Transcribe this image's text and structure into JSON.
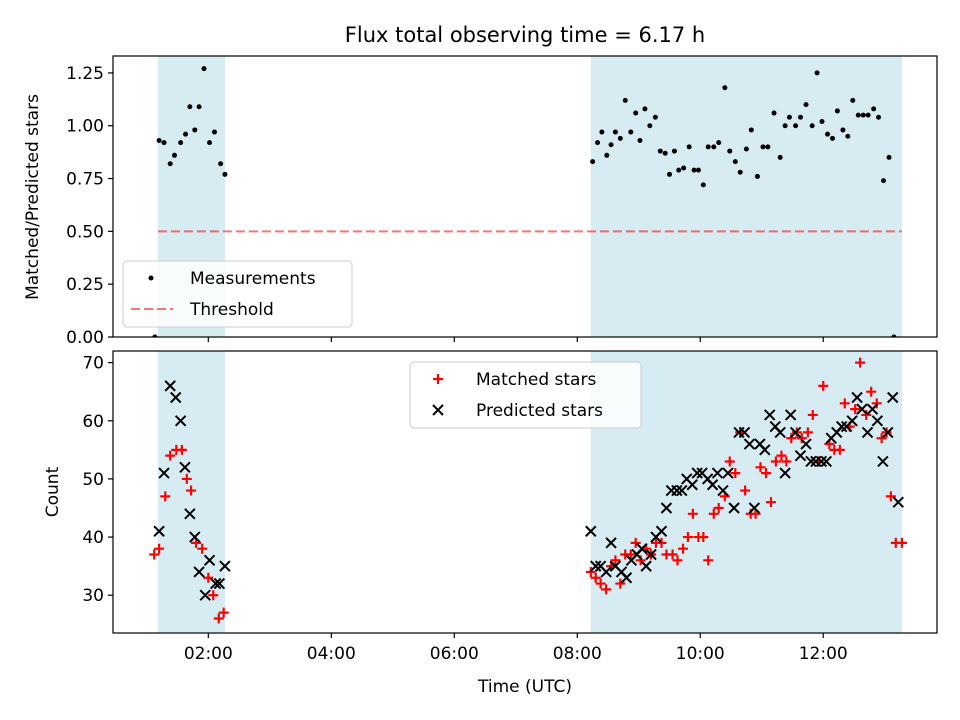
{
  "title": "Flux total observing time = 6.17 h",
  "colors": {
    "shade": "#add8e6",
    "threshold": "#ff0000",
    "matched": "#ff0000",
    "predicted": "#000000",
    "measurement": "#000000"
  },
  "chart_data": [
    {
      "type": "scatter",
      "ylabel": "Matched/Predicted stars",
      "ylim": [
        0,
        1.33
      ],
      "yticks": [
        "0.00",
        "0.25",
        "0.50",
        "0.75",
        "1.00",
        "1.25"
      ],
      "xlim": [
        0.45,
        13.85
      ],
      "xticks": [
        2,
        4,
        6,
        8,
        10,
        12
      ],
      "legend": {
        "position": "lower-left",
        "entries": [
          {
            "label": "Measurements",
            "marker": "dot"
          },
          {
            "label": "Threshold",
            "marker": "dashed-line"
          }
        ]
      },
      "shaded_intervals": [
        [
          1.18,
          2.27
        ],
        [
          8.22,
          13.28
        ]
      ],
      "threshold": {
        "y": 0.5,
        "x_from": 1.18,
        "x_to": 13.28
      },
      "series": [
        {
          "name": "Measurements",
          "points": [
            [
              1.13,
              0.0
            ],
            [
              1.2,
              0.93
            ],
            [
              1.28,
              0.92
            ],
            [
              1.38,
              0.82
            ],
            [
              1.45,
              0.86
            ],
            [
              1.55,
              0.92
            ],
            [
              1.63,
              0.96
            ],
            [
              1.7,
              1.09
            ],
            [
              1.78,
              0.98
            ],
            [
              1.85,
              1.09
            ],
            [
              1.93,
              1.27
            ],
            [
              2.02,
              0.92
            ],
            [
              2.1,
              0.97
            ],
            [
              2.2,
              0.82
            ],
            [
              2.27,
              0.77
            ],
            [
              8.25,
              0.83
            ],
            [
              8.33,
              0.92
            ],
            [
              8.4,
              0.97
            ],
            [
              8.48,
              0.86
            ],
            [
              8.55,
              0.91
            ],
            [
              8.62,
              0.97
            ],
            [
              8.7,
              0.94
            ],
            [
              8.78,
              1.12
            ],
            [
              8.87,
              0.97
            ],
            [
              8.95,
              1.06
            ],
            [
              9.02,
              0.93
            ],
            [
              9.1,
              1.08
            ],
            [
              9.18,
              1.0
            ],
            [
              9.27,
              1.04
            ],
            [
              9.35,
              0.88
            ],
            [
              9.43,
              0.87
            ],
            [
              9.5,
              0.77
            ],
            [
              9.58,
              0.88
            ],
            [
              9.65,
              0.79
            ],
            [
              9.73,
              0.8
            ],
            [
              9.82,
              0.9
            ],
            [
              9.9,
              0.79
            ],
            [
              9.97,
              0.79
            ],
            [
              10.05,
              0.72
            ],
            [
              10.13,
              0.9
            ],
            [
              10.22,
              0.9
            ],
            [
              10.3,
              0.92
            ],
            [
              10.4,
              1.18
            ],
            [
              10.48,
              0.88
            ],
            [
              10.57,
              0.83
            ],
            [
              10.65,
              0.78
            ],
            [
              10.75,
              0.89
            ],
            [
              10.83,
              0.98
            ],
            [
              10.93,
              0.76
            ],
            [
              11.02,
              0.9
            ],
            [
              11.1,
              0.9
            ],
            [
              11.2,
              1.06
            ],
            [
              11.3,
              0.85
            ],
            [
              11.38,
              1.0
            ],
            [
              11.45,
              1.04
            ],
            [
              11.55,
              1.0
            ],
            [
              11.63,
              1.04
            ],
            [
              11.72,
              1.1
            ],
            [
              11.82,
              1.0
            ],
            [
              11.9,
              1.25
            ],
            [
              11.98,
              1.02
            ],
            [
              12.07,
              0.96
            ],
            [
              12.15,
              0.94
            ],
            [
              12.23,
              1.07
            ],
            [
              12.32,
              0.98
            ],
            [
              12.4,
              0.95
            ],
            [
              12.48,
              1.12
            ],
            [
              12.57,
              1.05
            ],
            [
              12.65,
              1.05
            ],
            [
              12.73,
              1.05
            ],
            [
              12.82,
              1.08
            ],
            [
              12.9,
              1.04
            ],
            [
              12.98,
              0.74
            ],
            [
              13.07,
              0.85
            ],
            [
              13.15,
              0.0
            ]
          ]
        }
      ]
    },
    {
      "type": "scatter",
      "xlabel": "Time (UTC)",
      "ylabel": "Count",
      "ylim": [
        23.5,
        72
      ],
      "yticks": [
        "30",
        "40",
        "50",
        "60",
        "70"
      ],
      "xlim": [
        0.45,
        13.85
      ],
      "xticks": [
        2,
        4,
        6,
        8,
        10,
        12
      ],
      "xticklabels": [
        "02:00",
        "04:00",
        "06:00",
        "08:00",
        "10:00",
        "12:00"
      ],
      "legend": {
        "position": "upper-center",
        "entries": [
          {
            "label": "Matched stars",
            "marker": "plus"
          },
          {
            "label": "Predicted stars",
            "marker": "x"
          }
        ]
      },
      "shaded_intervals": [
        [
          1.18,
          2.27
        ],
        [
          8.22,
          13.28
        ]
      ],
      "series": [
        {
          "name": "Matched stars",
          "points": [
            [
              1.12,
              37
            ],
            [
              1.2,
              38
            ],
            [
              1.3,
              47
            ],
            [
              1.38,
              54
            ],
            [
              1.48,
              55
            ],
            [
              1.57,
              55
            ],
            [
              1.65,
              50
            ],
            [
              1.72,
              48
            ],
            [
              1.8,
              39
            ],
            [
              1.9,
              38
            ],
            [
              2.0,
              33
            ],
            [
              2.08,
              30
            ],
            [
              2.17,
              26
            ],
            [
              2.25,
              27
            ],
            [
              8.22,
              34
            ],
            [
              8.3,
              33
            ],
            [
              8.38,
              32
            ],
            [
              8.47,
              31
            ],
            [
              8.55,
              35
            ],
            [
              8.62,
              36
            ],
            [
              8.7,
              32
            ],
            [
              8.78,
              37
            ],
            [
              8.87,
              37
            ],
            [
              8.95,
              39
            ],
            [
              9.03,
              36
            ],
            [
              9.12,
              38
            ],
            [
              9.2,
              37
            ],
            [
              9.28,
              39
            ],
            [
              9.37,
              39
            ],
            [
              9.45,
              37
            ],
            [
              9.55,
              37
            ],
            [
              9.63,
              36
            ],
            [
              9.72,
              38
            ],
            [
              9.8,
              40
            ],
            [
              9.88,
              44
            ],
            [
              9.97,
              40
            ],
            [
              10.05,
              40
            ],
            [
              10.13,
              36
            ],
            [
              10.22,
              44
            ],
            [
              10.3,
              45
            ],
            [
              10.4,
              47
            ],
            [
              10.48,
              53
            ],
            [
              10.57,
              51
            ],
            [
              10.65,
              58
            ],
            [
              10.73,
              48
            ],
            [
              10.82,
              44
            ],
            [
              10.9,
              44
            ],
            [
              10.98,
              52
            ],
            [
              11.07,
              51
            ],
            [
              11.15,
              46
            ],
            [
              11.23,
              53
            ],
            [
              11.32,
              54
            ],
            [
              11.4,
              53
            ],
            [
              11.48,
              57
            ],
            [
              11.57,
              58
            ],
            [
              11.65,
              57
            ],
            [
              11.75,
              58
            ],
            [
              11.83,
              61
            ],
            [
              11.92,
              53
            ],
            [
              12.0,
              66
            ],
            [
              12.1,
              56
            ],
            [
              12.18,
              55
            ],
            [
              12.27,
              55
            ],
            [
              12.35,
              63
            ],
            [
              12.43,
              59
            ],
            [
              12.52,
              62
            ],
            [
              12.6,
              70
            ],
            [
              12.7,
              61
            ],
            [
              12.78,
              65
            ],
            [
              12.87,
              63
            ],
            [
              12.95,
              57
            ],
            [
              13.03,
              58
            ],
            [
              13.1,
              47
            ],
            [
              13.18,
              39
            ],
            [
              13.28,
              39
            ]
          ]
        },
        {
          "name": "Predicted stars",
          "points": [
            [
              1.2,
              41
            ],
            [
              1.28,
              51
            ],
            [
              1.38,
              66
            ],
            [
              1.47,
              64
            ],
            [
              1.55,
              60
            ],
            [
              1.62,
              52
            ],
            [
              1.7,
              44
            ],
            [
              1.78,
              40
            ],
            [
              1.85,
              34
            ],
            [
              1.95,
              30
            ],
            [
              2.02,
              36
            ],
            [
              2.12,
              32
            ],
            [
              2.18,
              32
            ],
            [
              2.27,
              35
            ],
            [
              8.22,
              41
            ],
            [
              8.3,
              35
            ],
            [
              8.38,
              35
            ],
            [
              8.47,
              34
            ],
            [
              8.55,
              39
            ],
            [
              8.62,
              35
            ],
            [
              8.72,
              34
            ],
            [
              8.8,
              33
            ],
            [
              8.88,
              36
            ],
            [
              8.97,
              37
            ],
            [
              9.05,
              38
            ],
            [
              9.12,
              35
            ],
            [
              9.2,
              37
            ],
            [
              9.28,
              40
            ],
            [
              9.37,
              41
            ],
            [
              9.45,
              45
            ],
            [
              9.53,
              48
            ],
            [
              9.62,
              48
            ],
            [
              9.7,
              48
            ],
            [
              9.78,
              50
            ],
            [
              9.87,
              49
            ],
            [
              9.95,
              51
            ],
            [
              10.03,
              51
            ],
            [
              10.12,
              50
            ],
            [
              10.2,
              49
            ],
            [
              10.28,
              51
            ],
            [
              10.37,
              48
            ],
            [
              10.45,
              51
            ],
            [
              10.55,
              45
            ],
            [
              10.63,
              58
            ],
            [
              10.72,
              58
            ],
            [
              10.8,
              56
            ],
            [
              10.88,
              45
            ],
            [
              10.97,
              56
            ],
            [
              11.05,
              55
            ],
            [
              11.13,
              61
            ],
            [
              11.22,
              59
            ],
            [
              11.3,
              58
            ],
            [
              11.38,
              51
            ],
            [
              11.47,
              61
            ],
            [
              11.55,
              58
            ],
            [
              11.63,
              54
            ],
            [
              11.72,
              56
            ],
            [
              11.8,
              53
            ],
            [
              11.88,
              53
            ],
            [
              11.97,
              53
            ],
            [
              12.05,
              53
            ],
            [
              12.13,
              57
            ],
            [
              12.22,
              58
            ],
            [
              12.3,
              59
            ],
            [
              12.38,
              59
            ],
            [
              12.47,
              60
            ],
            [
              12.55,
              64
            ],
            [
              12.63,
              62
            ],
            [
              12.72,
              58
            ],
            [
              12.8,
              62
            ],
            [
              12.88,
              60
            ],
            [
              12.97,
              53
            ],
            [
              13.05,
              58
            ],
            [
              13.13,
              64
            ],
            [
              13.22,
              46
            ]
          ]
        }
      ]
    }
  ]
}
